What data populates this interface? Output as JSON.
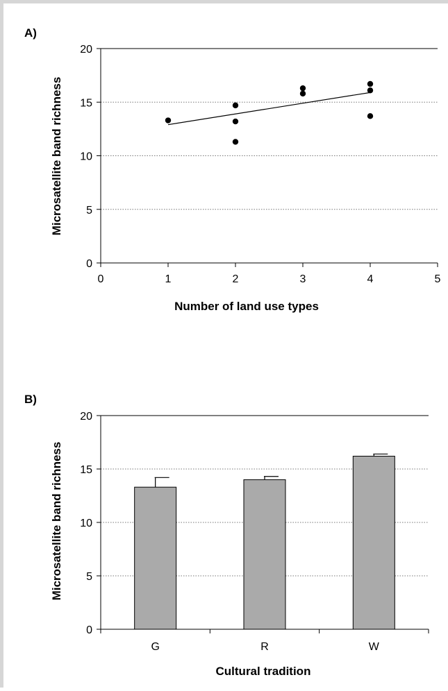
{
  "chart_data": [
    {
      "panel_label": "A)",
      "type": "scatter",
      "xlabel": "Number of land use types",
      "ylabel": "Microsatellite band richness",
      "xlim": [
        0,
        5
      ],
      "ylim": [
        0,
        20
      ],
      "xticks": [
        "0",
        "1",
        "2",
        "3",
        "4",
        "5"
      ],
      "yticks": [
        "0",
        "5",
        "10",
        "15",
        "20"
      ],
      "grid": "horizontal dotted",
      "points": [
        {
          "x": 1,
          "y": 13.3
        },
        {
          "x": 2,
          "y": 14.7
        },
        {
          "x": 2,
          "y": 13.2
        },
        {
          "x": 2,
          "y": 11.3
        },
        {
          "x": 3,
          "y": 16.3
        },
        {
          "x": 3,
          "y": 15.8
        },
        {
          "x": 4,
          "y": 16.7
        },
        {
          "x": 4,
          "y": 16.1
        },
        {
          "x": 4,
          "y": 13.7
        }
      ],
      "trendline": {
        "x": [
          1,
          4
        ],
        "y": [
          12.9,
          15.9
        ]
      }
    },
    {
      "panel_label": "B)",
      "type": "bar",
      "xlabel": "Cultural tradition",
      "ylabel": "Microsatellite band richness",
      "ylim": [
        0,
        20
      ],
      "yticks": [
        "0",
        "5",
        "10",
        "15",
        "20"
      ],
      "grid": "horizontal dotted",
      "categories": [
        "G",
        "R",
        "W"
      ],
      "values": [
        13.3,
        14.0,
        16.2
      ],
      "errors": [
        0.9,
        0.3,
        0.2
      ],
      "bar_color": "#aaaaaa"
    }
  ]
}
